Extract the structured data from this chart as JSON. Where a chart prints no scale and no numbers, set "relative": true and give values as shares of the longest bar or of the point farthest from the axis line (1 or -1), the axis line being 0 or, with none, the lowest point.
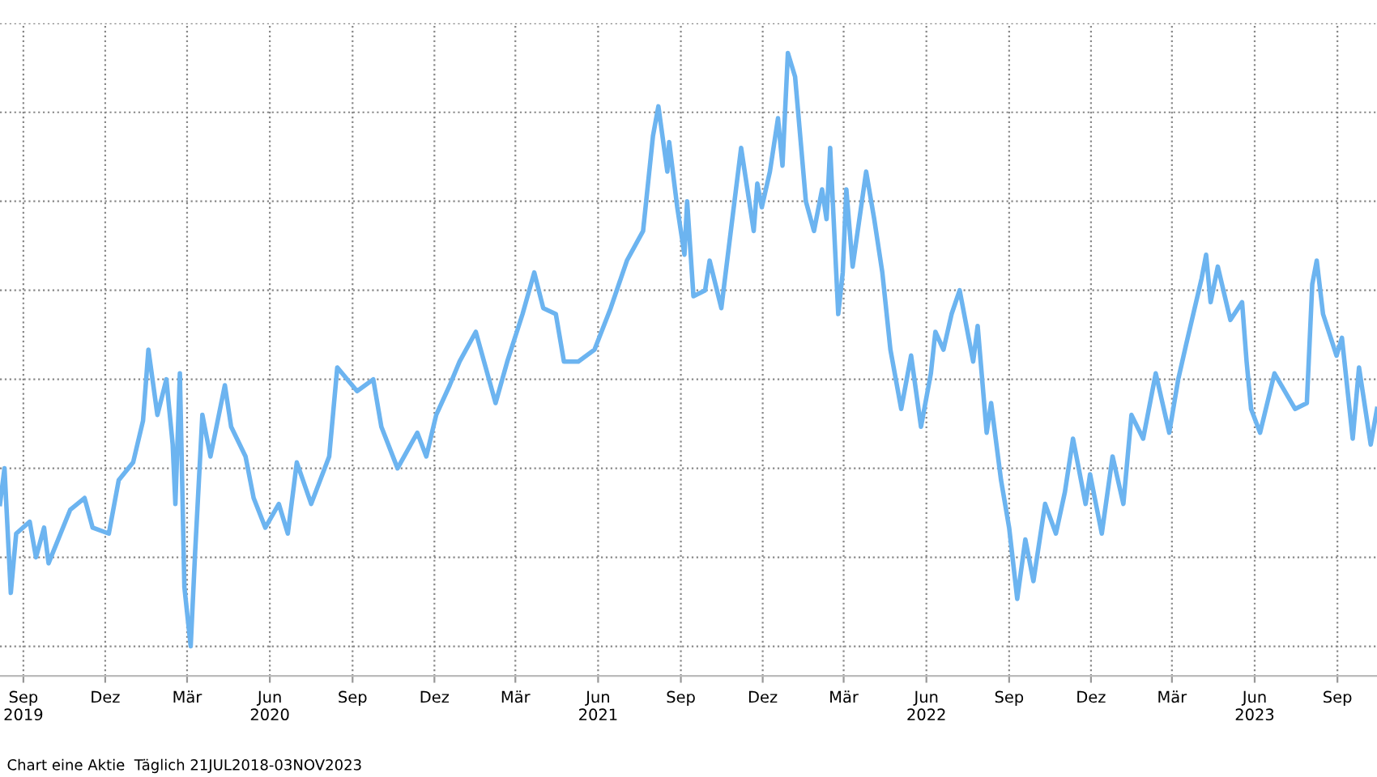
{
  "chart_data": {
    "type": "line",
    "relative": true,
    "grid": true,
    "x": [
      "2019-08-06",
      "2019-08-11",
      "2019-08-18",
      "2019-08-24",
      "2019-09-08",
      "2019-09-15",
      "2019-09-24",
      "2019-09-29",
      "2019-10-23",
      "2019-11-08",
      "2019-11-17",
      "2019-12-05",
      "2019-12-16",
      "2020-01-01",
      "2020-01-12",
      "2020-01-18",
      "2020-01-28",
      "2020-02-07",
      "2020-02-14",
      "2020-02-17",
      "2020-02-22",
      "2020-02-27",
      "2020-03-05",
      "2020-03-10",
      "2020-03-18",
      "2020-03-27",
      "2020-04-12",
      "2020-04-19",
      "2020-05-05",
      "2020-05-14",
      "2020-05-27",
      "2020-06-11",
      "2020-06-21",
      "2020-07-01",
      "2020-07-17",
      "2020-08-06",
      "2020-08-15",
      "2020-09-06",
      "2020-09-24",
      "2020-10-03",
      "2020-10-21",
      "2020-11-12",
      "2020-11-22",
      "2020-12-03",
      "2020-12-18",
      "2020-12-29",
      "2021-01-16",
      "2021-02-07",
      "2021-02-20",
      "2021-03-09",
      "2021-03-22",
      "2021-04-01",
      "2021-04-15",
      "2021-04-24",
      "2021-05-10",
      "2021-05-28",
      "2021-06-15",
      "2021-07-03",
      "2021-07-21",
      "2021-08-01",
      "2021-08-07",
      "2021-08-17",
      "2021-08-19",
      "2021-08-28",
      "2021-09-05",
      "2021-09-08",
      "2021-09-15",
      "2021-09-28",
      "2021-10-03",
      "2021-10-16",
      "2021-10-29",
      "2021-11-07",
      "2021-11-21",
      "2021-11-25",
      "2021-11-30",
      "2021-12-09",
      "2021-12-18",
      "2021-12-23",
      "2021-12-29",
      "2022-01-06",
      "2022-01-18",
      "2022-01-27",
      "2022-02-05",
      "2022-02-10",
      "2022-02-14",
      "2022-02-23",
      "2022-02-28",
      "2022-03-04",
      "2022-03-11",
      "2022-03-26",
      "2022-04-04",
      "2022-04-13",
      "2022-04-22",
      "2022-05-04",
      "2022-05-15",
      "2022-05-26",
      "2022-06-06",
      "2022-06-11",
      "2022-06-20",
      "2022-06-29",
      "2022-07-08",
      "2022-07-23",
      "2022-07-28",
      "2022-08-07",
      "2022-08-12",
      "2022-08-23",
      "2022-09-01",
      "2022-09-10",
      "2022-09-19",
      "2022-09-28",
      "2022-10-11",
      "2022-10-23",
      "2022-11-02",
      "2022-11-11",
      "2022-11-25",
      "2022-11-30",
      "2022-12-13",
      "2022-12-25",
      "2023-01-06",
      "2023-01-15",
      "2023-01-28",
      "2023-02-11",
      "2023-02-26",
      "2023-03-08",
      "2023-03-17",
      "2023-04-03",
      "2023-04-08",
      "2023-04-13",
      "2023-04-21",
      "2023-05-05",
      "2023-05-18",
      "2023-05-23",
      "2023-05-28",
      "2023-06-07",
      "2023-06-23",
      "2023-07-16",
      "2023-07-29",
      "2023-08-04",
      "2023-08-09",
      "2023-08-16",
      "2023-08-31",
      "2023-09-06",
      "2023-09-18",
      "2023-09-25",
      "2023-10-08",
      "2023-10-15"
    ],
    "series": [
      {
        "color": "#6cb4f0",
        "values": [
          0.24,
          0.3,
          0.09,
          0.19,
          0.21,
          0.15,
          0.2,
          0.14,
          0.23,
          0.25,
          0.2,
          0.19,
          0.28,
          0.31,
          0.38,
          0.5,
          0.39,
          0.45,
          0.34,
          0.24,
          0.46,
          0.1,
          0,
          0.16,
          0.39,
          0.32,
          0.44,
          0.37,
          0.32,
          0.25,
          0.2,
          0.24,
          0.19,
          0.31,
          0.24,
          0.32,
          0.47,
          0.43,
          0.45,
          0.37,
          0.3,
          0.36,
          0.32,
          0.39,
          0.44,
          0.48,
          0.53,
          0.41,
          0.48,
          0.56,
          0.63,
          0.57,
          0.56,
          0.48,
          0.48,
          0.5,
          0.57,
          0.65,
          0.7,
          0.86,
          0.91,
          0.8,
          0.85,
          0.74,
          0.66,
          0.75,
          0.59,
          0.6,
          0.65,
          0.57,
          0.73,
          0.84,
          0.7,
          0.78,
          0.74,
          0.8,
          0.89,
          0.81,
          1.0,
          0.96,
          0.75,
          0.7,
          0.77,
          0.72,
          0.84,
          0.56,
          0.63,
          0.77,
          0.64,
          0.8,
          0.72,
          0.63,
          0.5,
          0.4,
          0.49,
          0.37,
          0.46,
          0.53,
          0.5,
          0.56,
          0.6,
          0.48,
          0.54,
          0.36,
          0.41,
          0.28,
          0.2,
          0.08,
          0.18,
          0.11,
          0.24,
          0.19,
          0.26,
          0.35,
          0.24,
          0.29,
          0.19,
          0.32,
          0.24,
          0.39,
          0.35,
          0.46,
          0.36,
          0.45,
          0.51,
          0.62,
          0.66,
          0.58,
          0.64,
          0.55,
          0.58,
          0.48,
          0.4,
          0.36,
          0.46,
          0.4,
          0.41,
          0.61,
          0.65,
          0.56,
          0.49,
          0.52,
          0.35,
          0.47,
          0.34,
          0.4
        ]
      }
    ],
    "xlim": [
      "2019-08-06",
      "2023-10-15"
    ],
    "xticks": [
      {
        "value": "2019-09-01",
        "label": "Sep\n2019"
      },
      {
        "value": "2019-12-01",
        "label": "Dez"
      },
      {
        "value": "2020-03-01",
        "label": "Mär"
      },
      {
        "value": "2020-06-01",
        "label": "Jun\n2020"
      },
      {
        "value": "2020-09-01",
        "label": "Sep"
      },
      {
        "value": "2020-12-01",
        "label": "Dez"
      },
      {
        "value": "2021-03-01",
        "label": "Mär"
      },
      {
        "value": "2021-06-01",
        "label": "Jun\n2021"
      },
      {
        "value": "2021-09-01",
        "label": "Sep"
      },
      {
        "value": "2021-12-01",
        "label": "Dez"
      },
      {
        "value": "2022-03-01",
        "label": "Mär"
      },
      {
        "value": "2022-06-01",
        "label": "Jun\n2022"
      },
      {
        "value": "2022-09-01",
        "label": "Sep"
      },
      {
        "value": "2022-12-01",
        "label": "Dez"
      },
      {
        "value": "2023-03-01",
        "label": "Mär"
      },
      {
        "value": "2023-06-01",
        "label": "Jun\n2023"
      },
      {
        "value": "2023-09-01",
        "label": "Sep"
      }
    ],
    "annotations": [
      "Chart eine Aktie  Täglich 21JUL2018-03NOV2023"
    ]
  }
}
